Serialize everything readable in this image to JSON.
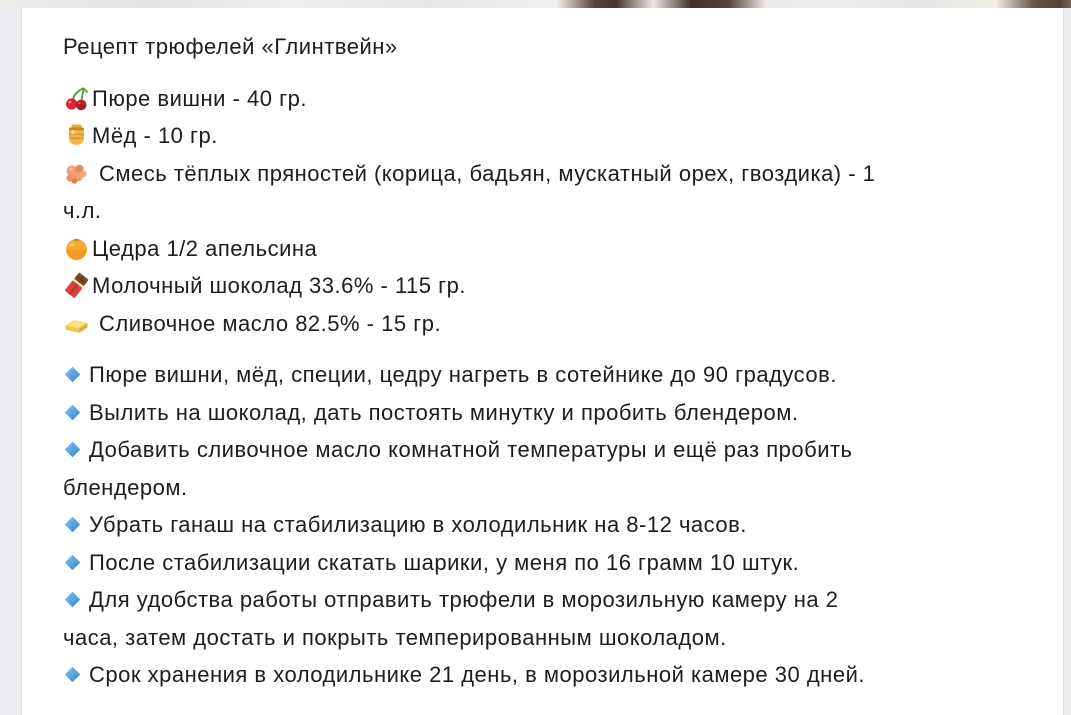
{
  "colors": {
    "page_background": "#ebedf0",
    "card_background": "#ffffff",
    "card_border": "#dfe1e5",
    "text": "#1c1d22",
    "diamond_light": "#8ec7f5",
    "diamond_dark": "#2a7fd0"
  },
  "post": {
    "title": "Рецепт трюфелей «Глинтвейн»",
    "ingredients": [
      {
        "icon": "cherries-icon",
        "space_after_icon": false,
        "lines": [
          "Пюре вишни - 40 гр."
        ]
      },
      {
        "icon": "honey-pot-icon",
        "space_after_icon": false,
        "lines": [
          "Мёд - 10 гр."
        ]
      },
      {
        "icon": "ginger-root-icon",
        "space_after_icon": true,
        "lines": [
          "Смесь тёплых пряностей (корица, бадьян, мускатный орех, гвоздика) - 1",
          "ч.л."
        ]
      },
      {
        "icon": "tangerine-icon",
        "space_after_icon": false,
        "lines": [
          "Цедра 1/2 апельсина"
        ]
      },
      {
        "icon": "chocolate-bar-icon",
        "space_after_icon": false,
        "lines": [
          "Молочный шоколад 33.6% - 115 гр."
        ]
      },
      {
        "icon": "butter-icon",
        "space_after_icon": true,
        "lines": [
          "Сливочное масло 82.5% - 15 гр."
        ]
      }
    ],
    "steps": [
      {
        "icon": "blue-diamond-icon",
        "lines": [
          "Пюре вишни, мёд, специи, цедру нагреть в сотейнике до 90 градусов."
        ]
      },
      {
        "icon": "blue-diamond-icon",
        "lines": [
          "Вылить на шоколад, дать постоять минутку и пробить блендером."
        ]
      },
      {
        "icon": "blue-diamond-icon",
        "lines": [
          "Добавить сливочное масло комнатной температуры и ещё раз пробить",
          "блендером."
        ]
      },
      {
        "icon": "blue-diamond-icon",
        "lines": [
          "Убрать ганаш на стабилизацию в холодильник на 8-12 часов."
        ]
      },
      {
        "icon": "blue-diamond-icon",
        "lines": [
          "После стабилизации скатать шарики, у меня по 16 грамм 10 штук."
        ]
      },
      {
        "icon": "blue-diamond-icon",
        "lines": [
          "Для удобства работы отправить трюфели в морозильную камеру на 2",
          "часа, затем достать и покрыть темперированным шоколадом."
        ]
      },
      {
        "icon": "blue-diamond-icon",
        "lines": [
          "Срок хранения в холодильнике 21 день, в морозильной камере 30 дней."
        ]
      }
    ]
  }
}
